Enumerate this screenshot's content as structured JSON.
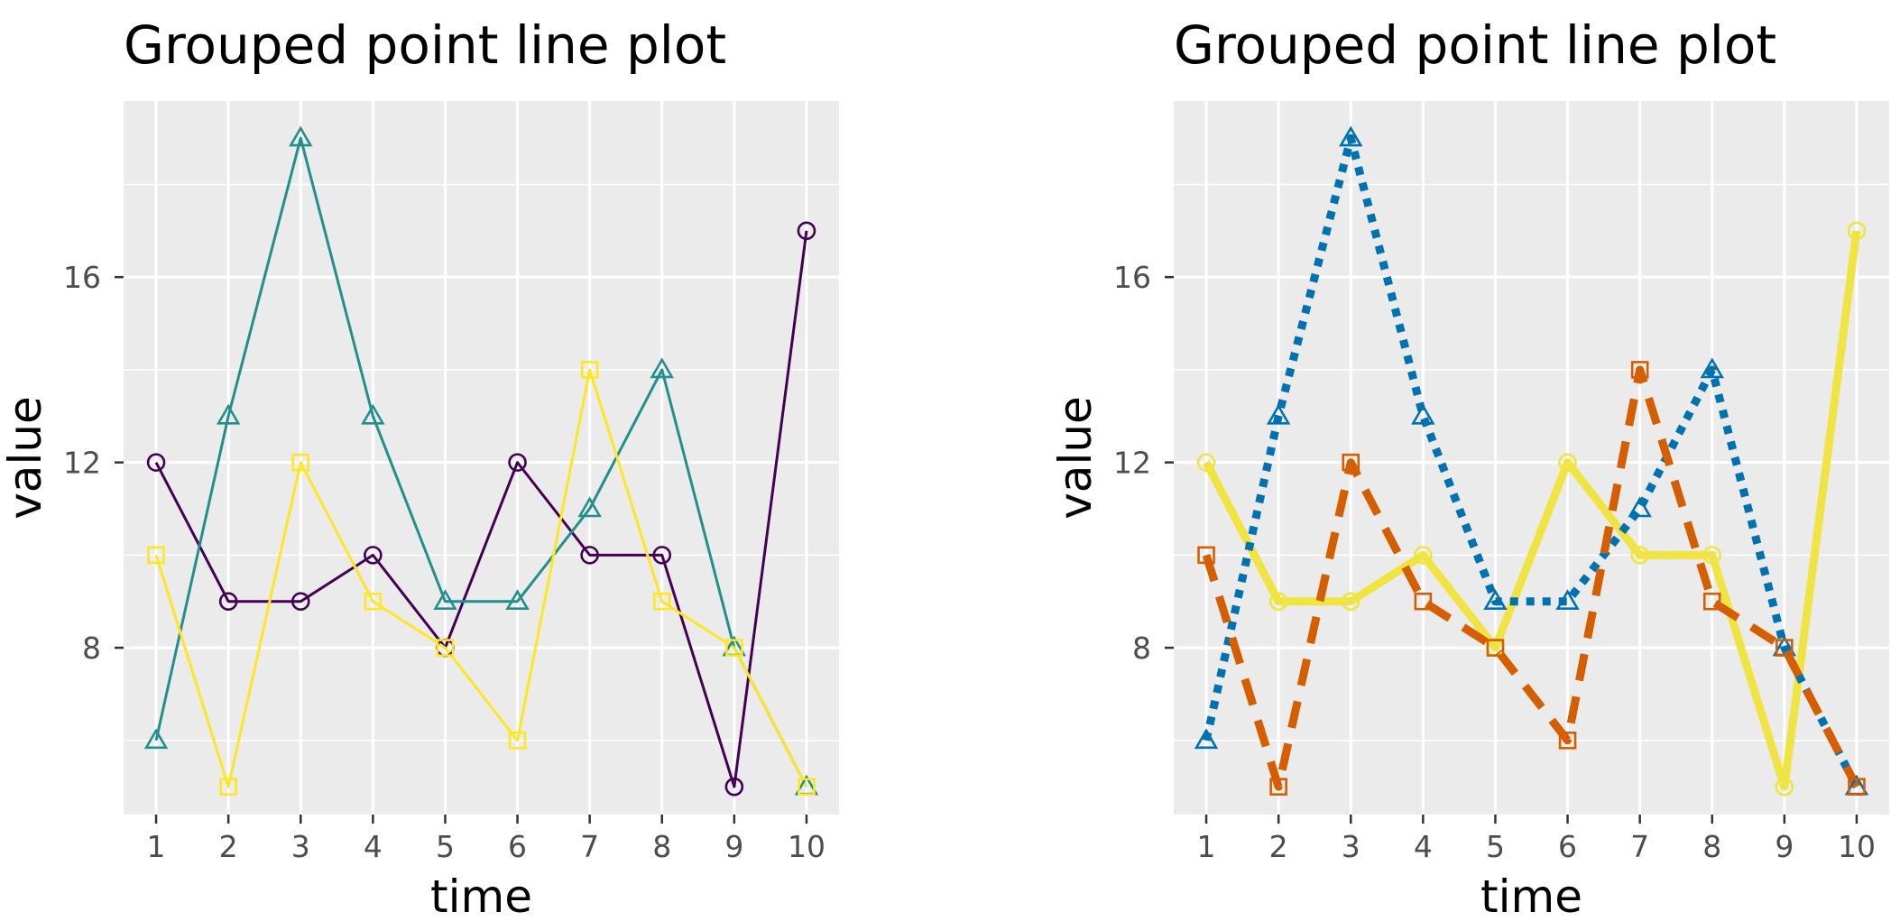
{
  "chart_data": [
    {
      "type": "line",
      "title": "Grouped point line plot",
      "xlabel": "time",
      "ylabel": "value",
      "x": [
        1,
        2,
        3,
        4,
        5,
        6,
        7,
        8,
        9,
        10
      ],
      "x_ticks": [
        "1",
        "2",
        "3",
        "4",
        "5",
        "6",
        "7",
        "8",
        "9",
        "10"
      ],
      "y_ticks": [
        "8",
        "12",
        "16"
      ],
      "ylim": [
        4.4,
        19.8
      ],
      "grid": true,
      "legend": "none",
      "series": [
        {
          "values": [
            12,
            9,
            9,
            10,
            8,
            12,
            10,
            10,
            5,
            17
          ],
          "color": "#440154",
          "marker": "circle",
          "linestyle": "solid"
        },
        {
          "values": [
            6,
            13,
            19,
            13,
            9,
            9,
            11,
            14,
            8,
            5
          ],
          "color": "#21908C",
          "marker": "triangle",
          "linestyle": "solid"
        },
        {
          "values": [
            10,
            5,
            12,
            9,
            8,
            6,
            14,
            9,
            8,
            5
          ],
          "color": "#FDE725",
          "marker": "square",
          "linestyle": "solid"
        }
      ]
    },
    {
      "type": "line",
      "title": "Grouped point line plot",
      "xlabel": "time",
      "ylabel": "value",
      "x": [
        1,
        2,
        3,
        4,
        5,
        6,
        7,
        8,
        9,
        10
      ],
      "x_ticks": [
        "1",
        "2",
        "3",
        "4",
        "5",
        "6",
        "7",
        "8",
        "9",
        "10"
      ],
      "y_ticks": [
        "8",
        "12",
        "16"
      ],
      "ylim": [
        4.4,
        19.8
      ],
      "grid": true,
      "legend": "none",
      "series": [
        {
          "values": [
            12,
            9,
            9,
            10,
            8,
            12,
            10,
            10,
            5,
            17
          ],
          "color": "#F0E442",
          "marker": "circle",
          "linestyle": "solid"
        },
        {
          "values": [
            6,
            13,
            19,
            13,
            9,
            9,
            11,
            14,
            8,
            5
          ],
          "color": "#0072B2",
          "marker": "triangle",
          "linestyle": "dotted"
        },
        {
          "values": [
            10,
            5,
            12,
            9,
            8,
            6,
            14,
            9,
            8,
            5
          ],
          "color": "#D55E00",
          "marker": "square",
          "linestyle": "dashed"
        }
      ]
    }
  ]
}
